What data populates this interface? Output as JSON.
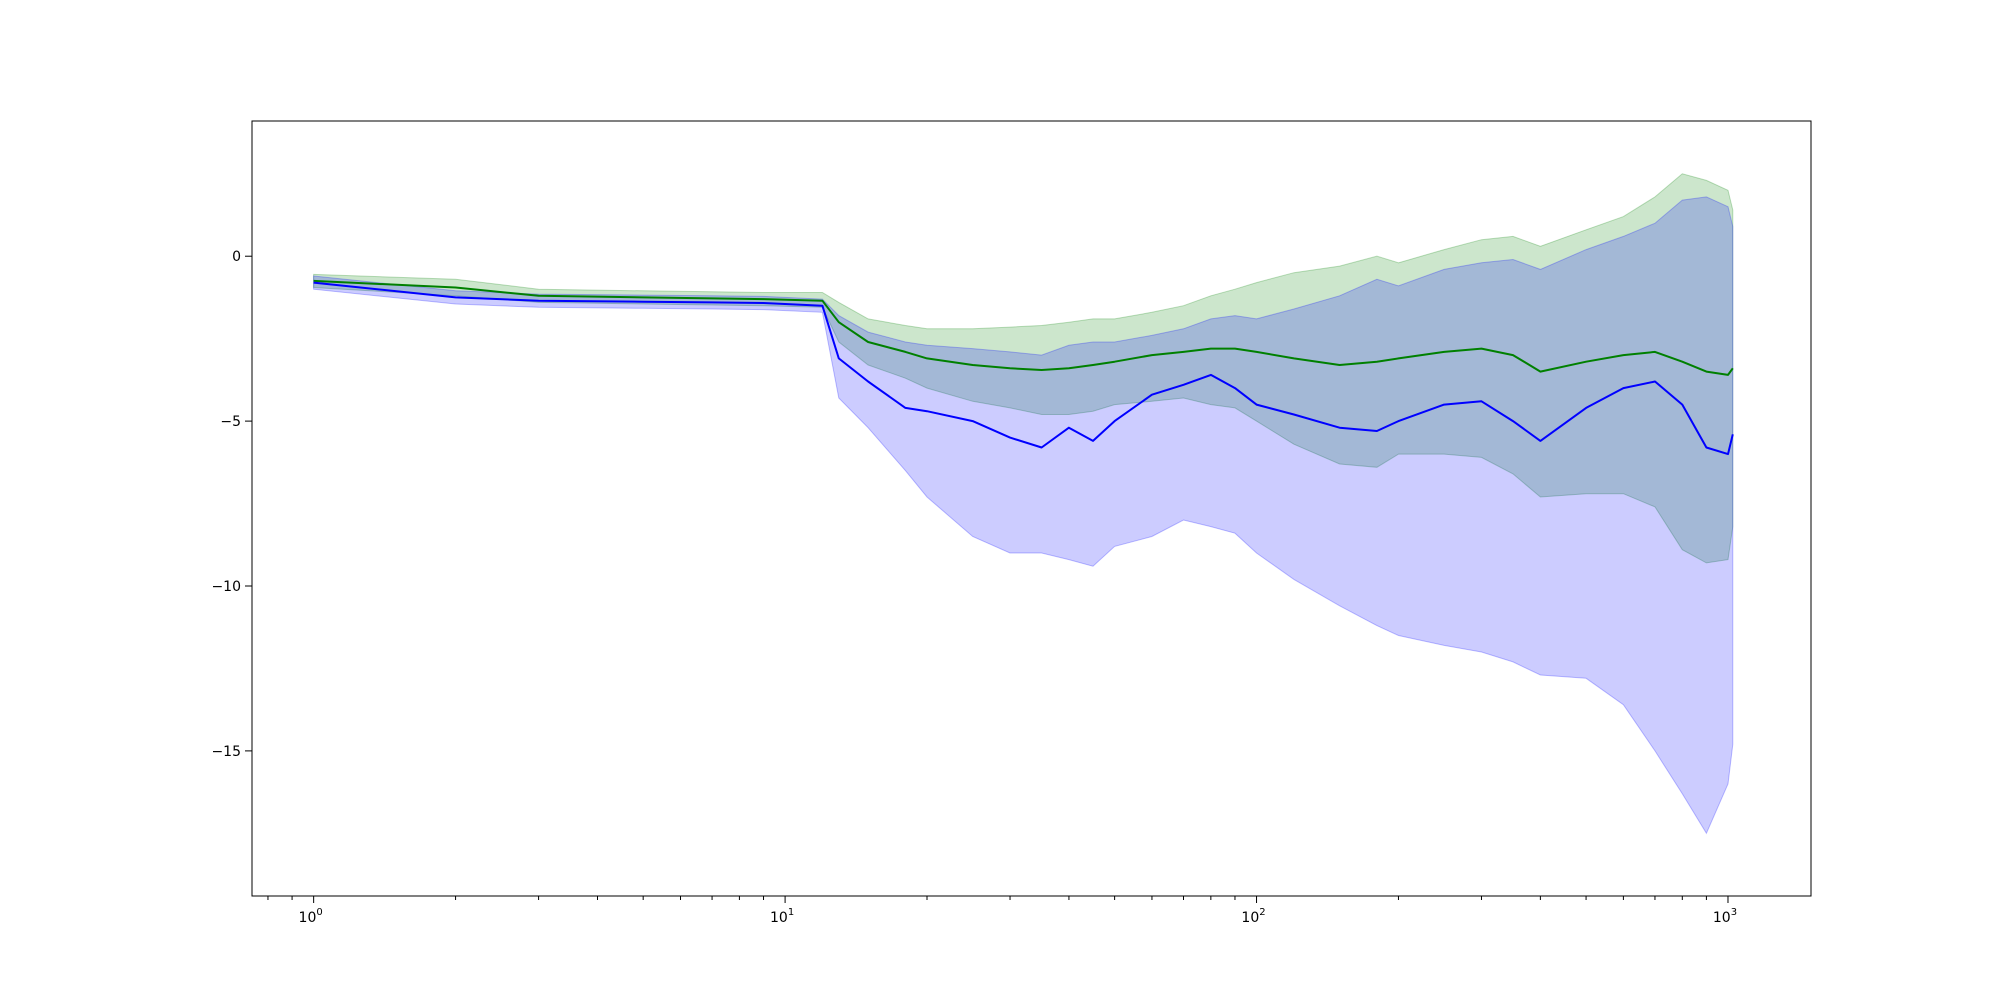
{
  "chart_data": {
    "type": "line",
    "title": "",
    "xlabel": "",
    "ylabel": "",
    "xscale": "log",
    "xlim": [
      0.74,
      1500
    ],
    "ylim": [
      -19.4,
      4.1
    ],
    "grid": false,
    "legend": "none",
    "x_ticks": [
      {
        "value": 1,
        "base": "10",
        "exp": "0"
      },
      {
        "value": 10,
        "base": "10",
        "exp": "1"
      },
      {
        "value": 100,
        "base": "10",
        "exp": "2"
      },
      {
        "value": 1000,
        "base": "10",
        "exp": "3"
      }
    ],
    "y_ticks": [
      {
        "value": 0,
        "label": "0"
      },
      {
        "value": -5,
        "label": "−5"
      },
      {
        "value": -10,
        "label": "−10"
      },
      {
        "value": -15,
        "label": "−15"
      }
    ],
    "series": [
      {
        "color": "#008000",
        "band_color": "#008000",
        "band_opacity": 0.2,
        "x": [
          1,
          2,
          3,
          5,
          7,
          9,
          12,
          13,
          15,
          18,
          20,
          25,
          30,
          35,
          40,
          45,
          50,
          60,
          70,
          80,
          90,
          100,
          120,
          150,
          180,
          200,
          250,
          300,
          350,
          400,
          500,
          600,
          700,
          800,
          900,
          1000,
          1024
        ],
        "y": [
          -0.75,
          -0.95,
          -1.2,
          -1.25,
          -1.28,
          -1.3,
          -1.35,
          -2.0,
          -2.6,
          -2.9,
          -3.1,
          -3.3,
          -3.4,
          -3.45,
          -3.4,
          -3.3,
          -3.2,
          -3.0,
          -2.9,
          -2.8,
          -2.8,
          -2.9,
          -3.1,
          -3.3,
          -3.2,
          -3.1,
          -2.9,
          -2.8,
          -3.0,
          -3.5,
          -3.2,
          -3.0,
          -2.9,
          -3.2,
          -3.5,
          -3.6,
          -3.4
        ],
        "upper": [
          -0.55,
          -0.7,
          -1.0,
          -1.05,
          -1.08,
          -1.1,
          -1.1,
          -1.4,
          -1.9,
          -2.1,
          -2.2,
          -2.2,
          -2.15,
          -2.1,
          -2.0,
          -1.9,
          -1.9,
          -1.7,
          -1.5,
          -1.2,
          -1.0,
          -0.8,
          -0.5,
          -0.3,
          0.0,
          -0.2,
          0.2,
          0.5,
          0.6,
          0.3,
          0.8,
          1.2,
          1.8,
          2.5,
          2.3,
          2.0,
          1.4
        ],
        "lower": [
          -0.95,
          -1.2,
          -1.4,
          -1.45,
          -1.48,
          -1.5,
          -1.55,
          -2.6,
          -3.3,
          -3.7,
          -4.0,
          -4.4,
          -4.6,
          -4.8,
          -4.8,
          -4.7,
          -4.5,
          -4.4,
          -4.3,
          -4.5,
          -4.6,
          -5.0,
          -5.7,
          -6.3,
          -6.4,
          -6.0,
          -6.0,
          -6.1,
          -6.6,
          -7.3,
          -7.2,
          -7.2,
          -7.6,
          -8.9,
          -9.3,
          -9.2,
          -8.2
        ]
      },
      {
        "color": "#0000ff",
        "band_color": "#0000ff",
        "band_opacity": 0.2,
        "x": [
          1,
          2,
          3,
          5,
          7,
          9,
          12,
          13,
          15,
          18,
          20,
          25,
          30,
          35,
          40,
          45,
          50,
          60,
          70,
          80,
          90,
          100,
          120,
          150,
          180,
          200,
          250,
          300,
          350,
          400,
          500,
          600,
          700,
          800,
          900,
          1000,
          1024
        ],
        "y": [
          -0.8,
          -1.25,
          -1.35,
          -1.38,
          -1.4,
          -1.42,
          -1.5,
          -3.1,
          -3.8,
          -4.6,
          -4.7,
          -5.0,
          -5.5,
          -5.8,
          -5.2,
          -5.6,
          -5.0,
          -4.2,
          -3.9,
          -3.6,
          -4.0,
          -4.5,
          -4.8,
          -5.2,
          -5.3,
          -5.0,
          -4.5,
          -4.4,
          -5.0,
          -5.6,
          -4.6,
          -4.0,
          -3.8,
          -4.5,
          -5.8,
          -6.0,
          -5.4
        ],
        "upper": [
          -0.6,
          -1.05,
          -1.15,
          -1.18,
          -1.2,
          -1.22,
          -1.3,
          -1.8,
          -2.3,
          -2.6,
          -2.7,
          -2.8,
          -2.9,
          -3.0,
          -2.7,
          -2.6,
          -2.6,
          -2.4,
          -2.2,
          -1.9,
          -1.8,
          -1.9,
          -1.6,
          -1.2,
          -0.7,
          -0.9,
          -0.4,
          -0.2,
          -0.1,
          -0.4,
          0.2,
          0.6,
          1.0,
          1.7,
          1.8,
          1.5,
          0.9
        ],
        "lower": [
          -1.0,
          -1.45,
          -1.55,
          -1.58,
          -1.6,
          -1.62,
          -1.7,
          -4.3,
          -5.2,
          -6.5,
          -7.3,
          -8.5,
          -9.0,
          -9.0,
          -9.2,
          -9.4,
          -8.8,
          -8.5,
          -8.0,
          -8.2,
          -8.4,
          -9.0,
          -9.8,
          -10.6,
          -11.2,
          -11.5,
          -11.8,
          -12.0,
          -12.3,
          -12.7,
          -12.8,
          -13.6,
          -15.0,
          -16.3,
          -17.5,
          -16.0,
          -14.8
        ]
      }
    ]
  }
}
